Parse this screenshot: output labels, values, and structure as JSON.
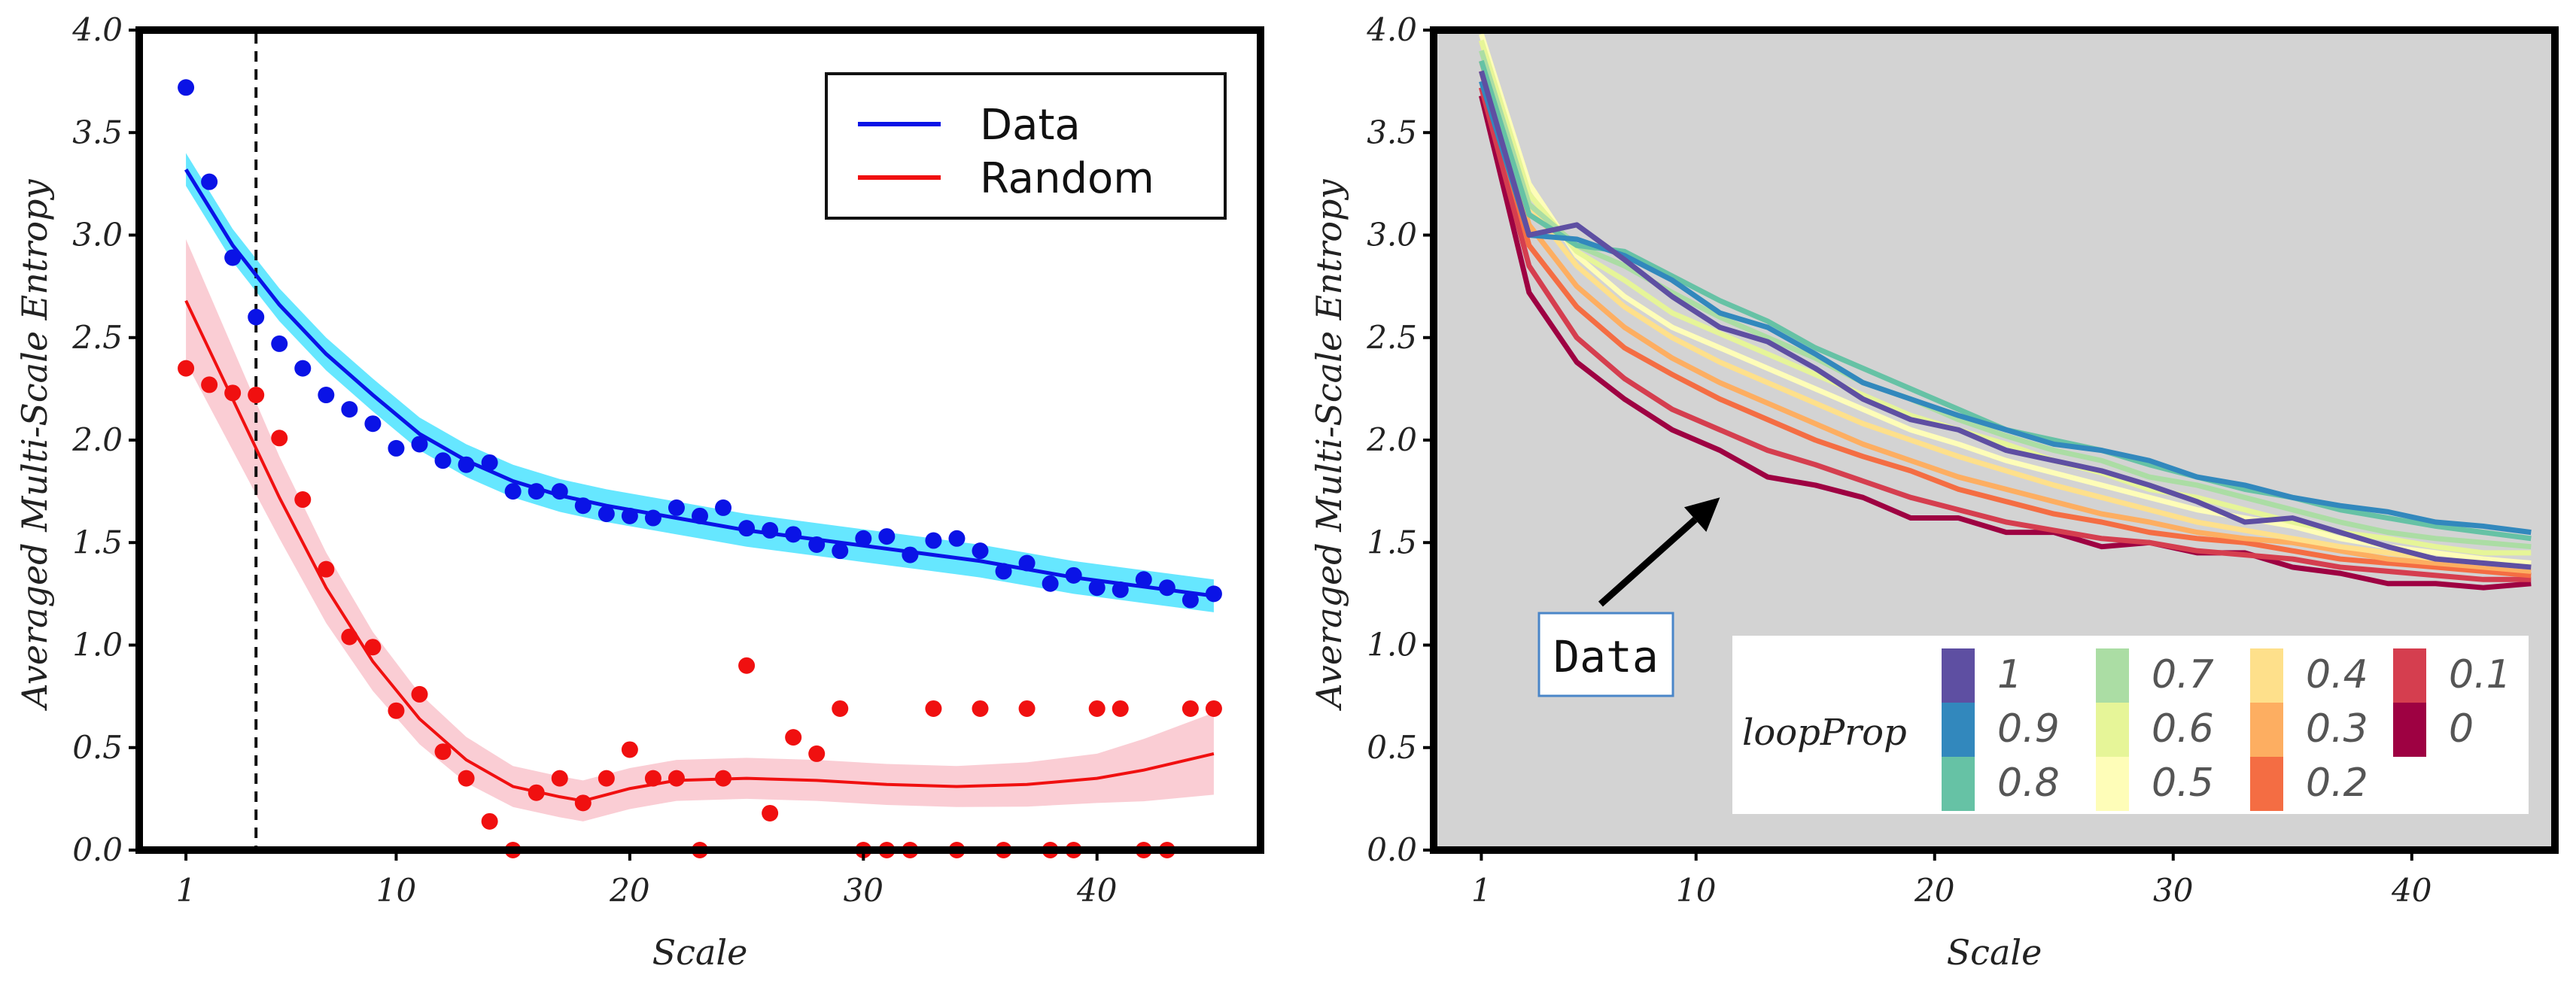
{
  "chart_data": [
    {
      "type": "scatter",
      "xlabel": "Scale",
      "ylabel": "Averaged Multi-Scale Entropy",
      "xlim": [
        -1,
        47
      ],
      "ylim": [
        0,
        4
      ],
      "xticks": [
        1,
        10,
        20,
        30,
        40
      ],
      "yticks": [
        "0.0",
        "0.5",
        "1.0",
        "1.5",
        "2.0",
        "2.5",
        "3.0",
        "3.5",
        "4.0"
      ],
      "vline_x": 4,
      "legend": [
        "Data",
        "Random"
      ],
      "colors": {
        "data": "#0a13e6",
        "data_band": "#55e4ff",
        "random": "#f01010",
        "random_band": "#f9c4cc"
      },
      "series": [
        {
          "name": "Data",
          "points": [
            [
              1,
              3.72
            ],
            [
              2,
              3.26
            ],
            [
              3,
              2.89
            ],
            [
              4,
              2.6
            ],
            [
              5,
              2.47
            ],
            [
              6,
              2.35
            ],
            [
              7,
              2.22
            ],
            [
              8,
              2.15
            ],
            [
              9,
              2.08
            ],
            [
              10,
              1.96
            ],
            [
              11,
              1.98
            ],
            [
              12,
              1.9
            ],
            [
              13,
              1.88
            ],
            [
              14,
              1.89
            ],
            [
              15,
              1.75
            ],
            [
              16,
              1.75
            ],
            [
              17,
              1.75
            ],
            [
              18,
              1.68
            ],
            [
              19,
              1.64
            ],
            [
              20,
              1.63
            ],
            [
              21,
              1.62
            ],
            [
              22,
              1.67
            ],
            [
              23,
              1.63
            ],
            [
              24,
              1.67
            ],
            [
              25,
              1.57
            ],
            [
              26,
              1.56
            ],
            [
              27,
              1.54
            ],
            [
              28,
              1.49
            ],
            [
              29,
              1.46
            ],
            [
              30,
              1.52
            ],
            [
              31,
              1.53
            ],
            [
              32,
              1.44
            ],
            [
              33,
              1.51
            ],
            [
              34,
              1.52
            ],
            [
              35,
              1.46
            ],
            [
              36,
              1.36
            ],
            [
              37,
              1.4
            ],
            [
              38,
              1.3
            ],
            [
              39,
              1.34
            ],
            [
              40,
              1.28
            ],
            [
              41,
              1.27
            ],
            [
              42,
              1.32
            ],
            [
              43,
              1.28
            ],
            [
              44,
              1.22
            ],
            [
              45,
              1.25
            ]
          ],
          "fit": [
            [
              1,
              3.32
            ],
            [
              3,
              2.95
            ],
            [
              5,
              2.66
            ],
            [
              7,
              2.42
            ],
            [
              9,
              2.22
            ],
            [
              11,
              2.03
            ],
            [
              13,
              1.9
            ],
            [
              15,
              1.8
            ],
            [
              17,
              1.73
            ],
            [
              19,
              1.68
            ],
            [
              21,
              1.64
            ],
            [
              23,
              1.6
            ],
            [
              25,
              1.56
            ],
            [
              27,
              1.53
            ],
            [
              29,
              1.5
            ],
            [
              31,
              1.47
            ],
            [
              33,
              1.44
            ],
            [
              35,
              1.41
            ],
            [
              37,
              1.37
            ],
            [
              39,
              1.33
            ],
            [
              41,
              1.3
            ],
            [
              43,
              1.27
            ],
            [
              45,
              1.24
            ]
          ],
          "band": 0.08
        },
        {
          "name": "Random",
          "points": [
            [
              1,
              2.35
            ],
            [
              2,
              2.27
            ],
            [
              3,
              2.23
            ],
            [
              4,
              2.22
            ],
            [
              5,
              2.01
            ],
            [
              6,
              1.71
            ],
            [
              7,
              1.37
            ],
            [
              8,
              1.04
            ],
            [
              9,
              0.99
            ],
            [
              10,
              0.68
            ],
            [
              11,
              0.76
            ],
            [
              12,
              0.48
            ],
            [
              13,
              0.35
            ],
            [
              14,
              0.14
            ],
            [
              15,
              0.0
            ],
            [
              16,
              0.28
            ],
            [
              17,
              0.35
            ],
            [
              18,
              0.23
            ],
            [
              19,
              0.35
            ],
            [
              20,
              0.49
            ],
            [
              21,
              0.35
            ],
            [
              22,
              0.35
            ],
            [
              23,
              0.0
            ],
            [
              24,
              0.35
            ],
            [
              25,
              0.9
            ],
            [
              26,
              0.18
            ],
            [
              27,
              0.55
            ],
            [
              28,
              0.47
            ],
            [
              29,
              0.69
            ],
            [
              30,
              0.0
            ],
            [
              31,
              0.0
            ],
            [
              32,
              0.0
            ],
            [
              33,
              0.69
            ],
            [
              34,
              0.0
            ],
            [
              35,
              0.69
            ],
            [
              36,
              0.0
            ],
            [
              37,
              0.69
            ],
            [
              38,
              0.0
            ],
            [
              39,
              0.0
            ],
            [
              40,
              0.69
            ],
            [
              41,
              0.69
            ],
            [
              42,
              0.0
            ],
            [
              43,
              0.0
            ],
            [
              44,
              0.69
            ],
            [
              45,
              0.69
            ]
          ],
          "fit": [
            [
              1,
              2.68
            ],
            [
              3,
              2.2
            ],
            [
              5,
              1.72
            ],
            [
              7,
              1.28
            ],
            [
              9,
              0.92
            ],
            [
              11,
              0.64
            ],
            [
              13,
              0.44
            ],
            [
              15,
              0.31
            ],
            [
              17,
              0.26
            ],
            [
              18,
              0.24
            ],
            [
              19,
              0.27
            ],
            [
              20,
              0.3
            ],
            [
              22,
              0.34
            ],
            [
              25,
              0.35
            ],
            [
              28,
              0.34
            ],
            [
              31,
              0.32
            ],
            [
              34,
              0.31
            ],
            [
              37,
              0.32
            ],
            [
              40,
              0.35
            ],
            [
              42,
              0.39
            ],
            [
              45,
              0.47
            ]
          ],
          "band_half": [
            [
              1,
              0.3
            ],
            [
              5,
              0.2
            ],
            [
              10,
              0.13
            ],
            [
              15,
              0.1
            ],
            [
              20,
              0.1
            ],
            [
              25,
              0.1
            ],
            [
              30,
              0.1
            ],
            [
              35,
              0.1
            ],
            [
              40,
              0.12
            ],
            [
              45,
              0.2
            ]
          ]
        }
      ]
    },
    {
      "type": "line",
      "xlabel": "Scale",
      "ylabel": "Averaged Multi-Scale Entropy",
      "xlim": [
        -1,
        46
      ],
      "ylim": [
        0,
        4
      ],
      "xticks": [
        1,
        10,
        20,
        30,
        40
      ],
      "yticks": [
        "0.0",
        "0.5",
        "1.0",
        "1.5",
        "2.0",
        "2.5",
        "3.0",
        "3.5",
        "4.0"
      ],
      "background": "#d3d3d3",
      "annotation": {
        "text": "Data",
        "arrow_from": [
          6,
          1.2
        ],
        "arrow_to": [
          11,
          1.72
        ]
      },
      "legend_title": "loopProp",
      "legend_labels": [
        "1",
        "0.9",
        "0.8",
        "0.7",
        "0.6",
        "0.5",
        "0.4",
        "0.3",
        "0.2",
        "0.1",
        "0"
      ],
      "x_scales": [
        1,
        3,
        5,
        7,
        9,
        11,
        13,
        15,
        17,
        19,
        21,
        23,
        25,
        27,
        29,
        31,
        33,
        35,
        37,
        39,
        41,
        43,
        45
      ],
      "series": [
        {
          "name": "1",
          "color": "#5e4fa2",
          "values": [
            3.8,
            3.0,
            3.05,
            2.88,
            2.7,
            2.55,
            2.48,
            2.35,
            2.2,
            2.1,
            2.05,
            1.95,
            1.9,
            1.85,
            1.78,
            1.7,
            1.6,
            1.62,
            1.55,
            1.48,
            1.42,
            1.4,
            1.38
          ]
        },
        {
          "name": "0.9",
          "color": "#3288bd",
          "values": [
            3.75,
            3.0,
            2.98,
            2.9,
            2.78,
            2.62,
            2.55,
            2.42,
            2.28,
            2.2,
            2.12,
            2.05,
            1.98,
            1.95,
            1.9,
            1.82,
            1.78,
            1.72,
            1.68,
            1.65,
            1.6,
            1.58,
            1.55
          ]
        },
        {
          "name": "0.8",
          "color": "#66c2a5",
          "values": [
            3.85,
            3.1,
            2.95,
            2.92,
            2.8,
            2.68,
            2.58,
            2.45,
            2.35,
            2.25,
            2.15,
            2.05,
            2.0,
            1.95,
            1.88,
            1.82,
            1.76,
            1.72,
            1.66,
            1.62,
            1.58,
            1.55,
            1.52
          ]
        },
        {
          "name": "0.7",
          "color": "#abdda4",
          "values": [
            3.9,
            3.15,
            2.95,
            2.85,
            2.72,
            2.6,
            2.5,
            2.4,
            2.28,
            2.2,
            2.1,
            2.02,
            1.95,
            1.9,
            1.82,
            1.78,
            1.72,
            1.66,
            1.6,
            1.55,
            1.52,
            1.5,
            1.48
          ]
        },
        {
          "name": "0.6",
          "color": "#e6f598",
          "values": [
            3.95,
            3.2,
            2.92,
            2.78,
            2.62,
            2.52,
            2.42,
            2.32,
            2.22,
            2.12,
            2.05,
            1.98,
            1.9,
            1.84,
            1.76,
            1.72,
            1.66,
            1.6,
            1.55,
            1.52,
            1.48,
            1.45,
            1.45
          ]
        },
        {
          "name": "0.5",
          "color": "#fefdb8",
          "values": [
            3.98,
            3.25,
            2.9,
            2.7,
            2.55,
            2.45,
            2.35,
            2.25,
            2.15,
            2.05,
            1.98,
            1.9,
            1.84,
            1.78,
            1.72,
            1.66,
            1.62,
            1.58,
            1.52,
            1.48,
            1.45,
            1.42,
            1.4
          ]
        },
        {
          "name": "0.4",
          "color": "#fee08b",
          "values": [
            3.95,
            3.15,
            2.85,
            2.65,
            2.5,
            2.38,
            2.28,
            2.18,
            2.08,
            2.0,
            1.92,
            1.85,
            1.78,
            1.72,
            1.66,
            1.6,
            1.56,
            1.52,
            1.48,
            1.45,
            1.42,
            1.4,
            1.38
          ]
        },
        {
          "name": "0.3",
          "color": "#fdae61",
          "values": [
            3.85,
            3.05,
            2.75,
            2.55,
            2.4,
            2.28,
            2.18,
            2.08,
            1.98,
            1.9,
            1.82,
            1.76,
            1.7,
            1.64,
            1.6,
            1.55,
            1.52,
            1.5,
            1.46,
            1.42,
            1.4,
            1.38,
            1.36
          ]
        },
        {
          "name": "0.2",
          "color": "#f46d43",
          "values": [
            3.8,
            2.95,
            2.65,
            2.45,
            2.32,
            2.2,
            2.1,
            2.0,
            1.92,
            1.85,
            1.76,
            1.7,
            1.64,
            1.6,
            1.55,
            1.52,
            1.5,
            1.46,
            1.42,
            1.4,
            1.38,
            1.36,
            1.34
          ]
        },
        {
          "name": "0.1",
          "color": "#d53e4f",
          "values": [
            3.72,
            2.85,
            2.5,
            2.3,
            2.15,
            2.05,
            1.95,
            1.88,
            1.8,
            1.72,
            1.66,
            1.6,
            1.56,
            1.52,
            1.5,
            1.46,
            1.44,
            1.42,
            1.38,
            1.36,
            1.34,
            1.32,
            1.32
          ]
        },
        {
          "name": "0",
          "color": "#9e0142",
          "values": [
            3.68,
            2.72,
            2.38,
            2.2,
            2.05,
            1.95,
            1.82,
            1.78,
            1.72,
            1.62,
            1.62,
            1.55,
            1.55,
            1.48,
            1.5,
            1.45,
            1.45,
            1.38,
            1.35,
            1.3,
            1.3,
            1.28,
            1.3
          ]
        }
      ]
    }
  ]
}
